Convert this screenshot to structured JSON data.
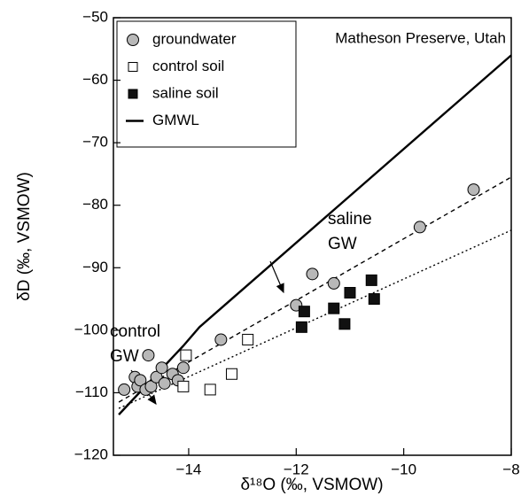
{
  "chart_data": {
    "type": "scatter",
    "xlabel": "δ¹⁸O (‰, VSMOW)",
    "ylabel": "δD (‰, VSMOW)",
    "xlim": [
      -15.4,
      -8
    ],
    "ylim": [
      -120,
      -50
    ],
    "xticks": [
      {
        "value": -14,
        "label": "−14"
      },
      {
        "value": -12,
        "label": "−12"
      },
      {
        "value": -10,
        "label": "−10"
      },
      {
        "value": -8,
        "label": "−8"
      }
    ],
    "yticks": [
      {
        "value": -120,
        "label": "−120"
      },
      {
        "value": -110,
        "label": "−110"
      },
      {
        "value": -100,
        "label": "−100"
      },
      {
        "value": -90,
        "label": "−90"
      },
      {
        "value": -80,
        "label": "−80"
      },
      {
        "value": -70,
        "label": "−70"
      },
      {
        "value": -60,
        "label": "−60"
      },
      {
        "value": -50,
        "label": "−50"
      }
    ],
    "legend": "upper left",
    "annotations": [
      {
        "lines": [
          "Matheson Preserve, Utah"
        ]
      },
      {
        "lines": [
          "saline",
          "GW"
        ]
      },
      {
        "lines": [
          "control",
          "GW"
        ]
      }
    ],
    "series": [
      {
        "name": "groundwater",
        "marker": "circle",
        "color": "#b8b8b8",
        "x": [
          -15.2,
          -15.0,
          -14.95,
          -14.9,
          -14.8,
          -14.75,
          -14.7,
          -14.6,
          -14.5,
          -14.45,
          -14.3,
          -14.2,
          -14.1,
          -13.4,
          -12.0,
          -11.7,
          -11.3,
          -9.7,
          -8.7
        ],
        "values": [
          -109.5,
          -107.5,
          -109,
          -108,
          -109.5,
          -104,
          -109,
          -107.5,
          -106,
          -108.5,
          -107,
          -108,
          -106,
          -101.5,
          -96,
          -91,
          -92.5,
          -83.5,
          -77.5
        ]
      },
      {
        "name": "control soil",
        "marker": "square",
        "color": "#ffffff",
        "x": [
          -14.05,
          -14.1,
          -13.6,
          -13.2,
          -12.9
        ],
        "values": [
          -104,
          -109,
          -109.5,
          -107,
          -101.5
        ]
      },
      {
        "name": "saline soil",
        "marker": "square",
        "color": "#111111",
        "x": [
          -11.85,
          -11.9,
          -11.3,
          -11.1,
          -11.0,
          -10.6,
          -10.55
        ],
        "values": [
          -97,
          -99.5,
          -96.5,
          -99,
          -94,
          -92,
          -95
        ]
      },
      {
        "name": "GMWL",
        "marker": "line",
        "color": "#000000",
        "x": [
          -15.3,
          -14.1,
          -13.8,
          -8
        ],
        "values": [
          -113.5,
          -102.5,
          -99.5,
          -56
        ]
      },
      {
        "marker": "line",
        "line_style": "dashed",
        "color": "#000000",
        "x": [
          -15.3,
          -8
        ],
        "values": [
          -111.5,
          -75.5
        ]
      },
      {
        "marker": "line",
        "line_style": "dotted",
        "color": "#000000",
        "x": [
          -15.3,
          -8
        ],
        "values": [
          -112.5,
          -84
        ]
      }
    ]
  }
}
